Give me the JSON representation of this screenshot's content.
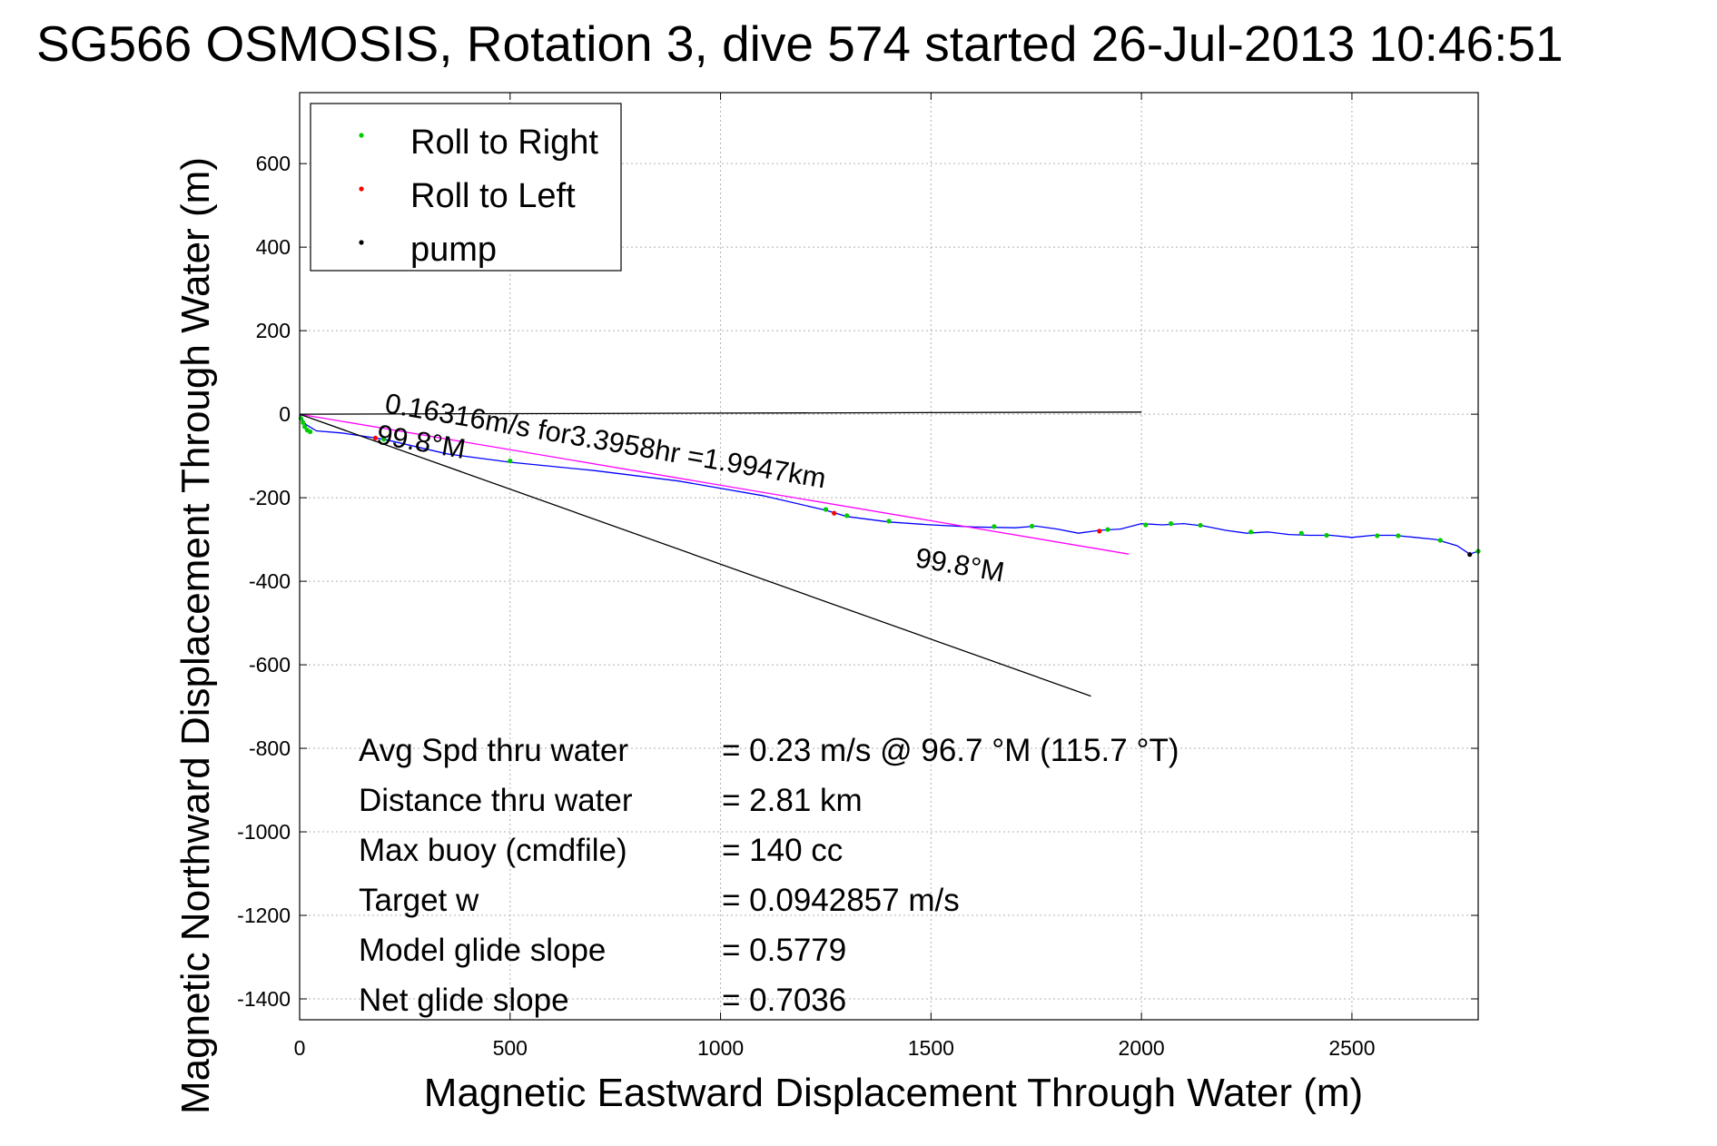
{
  "chart_data": {
    "type": "line",
    "title": "SG566 OSMOSIS, Rotation 3, dive 574 started 26-Jul-2013 10:46:51",
    "xlabel": "Magnetic Eastward Displacement Through Water (m)",
    "ylabel": "Magnetic Northward Displacement Through Water (m)",
    "xlim": [
      0,
      2800
    ],
    "ylim": [
      -1450,
      770
    ],
    "xticks": [
      0,
      500,
      1000,
      1500,
      2000,
      2500
    ],
    "yticks": [
      -1400,
      -1200,
      -1000,
      -800,
      -600,
      -400,
      -200,
      0,
      200,
      400,
      600
    ],
    "grid": true,
    "legend_position": "top-left",
    "legend": [
      {
        "label": "Roll to Right",
        "color": "#00cc00"
      },
      {
        "label": "Roll to Left",
        "color": "#ff0000"
      },
      {
        "label": "pump",
        "color": "#000000"
      }
    ],
    "series": [
      {
        "name": "",
        "color": "#0000ff",
        "x": [
          0,
          5,
          15,
          40,
          100,
          200,
          350,
          500,
          700,
          900,
          1100,
          1250,
          1300,
          1400,
          1500,
          1600,
          1700,
          1750,
          1800,
          1850,
          1900,
          1950,
          2000,
          2050,
          2100,
          2150,
          2200,
          2250,
          2300,
          2350,
          2400,
          2450,
          2500,
          2550,
          2600,
          2650,
          2700,
          2750,
          2780,
          2800
        ],
        "y": [
          0,
          -10,
          -25,
          -40,
          -45,
          -60,
          -95,
          -115,
          -135,
          -160,
          -195,
          -230,
          -245,
          -258,
          -265,
          -270,
          -272,
          -268,
          -275,
          -285,
          -278,
          -275,
          -262,
          -265,
          -262,
          -268,
          -278,
          -285,
          -282,
          -288,
          -290,
          -290,
          -295,
          -290,
          -290,
          -295,
          -300,
          -315,
          -335,
          -328
        ]
      },
      {
        "name": "",
        "color": "#ff00ff",
        "x": [
          0,
          1970
        ],
        "y": [
          0,
          -335
        ]
      },
      {
        "name": "",
        "color": "#000000",
        "x": [
          0,
          1880
        ],
        "y": [
          0,
          -675
        ]
      },
      {
        "name": "",
        "color": "#000000",
        "x": [
          0,
          2000
        ],
        "y": [
          0,
          5
        ]
      }
    ],
    "markers": {
      "right": {
        "color": "#00cc00",
        "x": [
          3,
          8,
          12,
          18,
          25,
          200,
          500,
          1250,
          1300,
          1400,
          1650,
          1740,
          1920,
          2010,
          2070,
          2140,
          2260,
          2380,
          2440,
          2560,
          2610,
          2710,
          2800
        ],
        "y": [
          -10,
          -20,
          -30,
          -38,
          -42,
          -60,
          -112,
          -228,
          -243,
          -256,
          -269,
          -268,
          -276,
          -265,
          -262,
          -266,
          -282,
          -285,
          -290,
          -291,
          -291,
          -302,
          -328
        ]
      },
      "left": {
        "color": "#ff0000",
        "x": [
          180,
          1270,
          1900
        ],
        "y": [
          -57,
          -237,
          -280
        ]
      },
      "pump": {
        "color": "#000000",
        "x": [
          2780
        ],
        "y": [
          -336
        ]
      }
    },
    "annotations": [
      {
        "text": "0.16316m/s for3.3958hr =1.9947km",
        "x": 200,
        "y": 5,
        "rotate": 9.8
      },
      {
        "text": "99.8°M",
        "x": 180,
        "y": -70,
        "rotate": 9.8
      },
      {
        "text": "99.8°M",
        "x": 1460,
        "y": -365,
        "rotate": 9.8
      }
    ],
    "stats": [
      {
        "label": "Avg Spd thru water",
        "value": "=  0.23 m/s @  96.7 °M (115.7 °T)"
      },
      {
        "label": "Distance thru water",
        "value": "=  2.81 km"
      },
      {
        "label": "Max buoy (cmdfile)",
        "value": "= 140 cc"
      },
      {
        "label": "Target w",
        "value": "= 0.0942857 m/s"
      },
      {
        "label": "Model glide slope",
        "value": "= 0.5779"
      },
      {
        "label": "Net glide slope",
        "value": "= 0.7036"
      }
    ]
  }
}
